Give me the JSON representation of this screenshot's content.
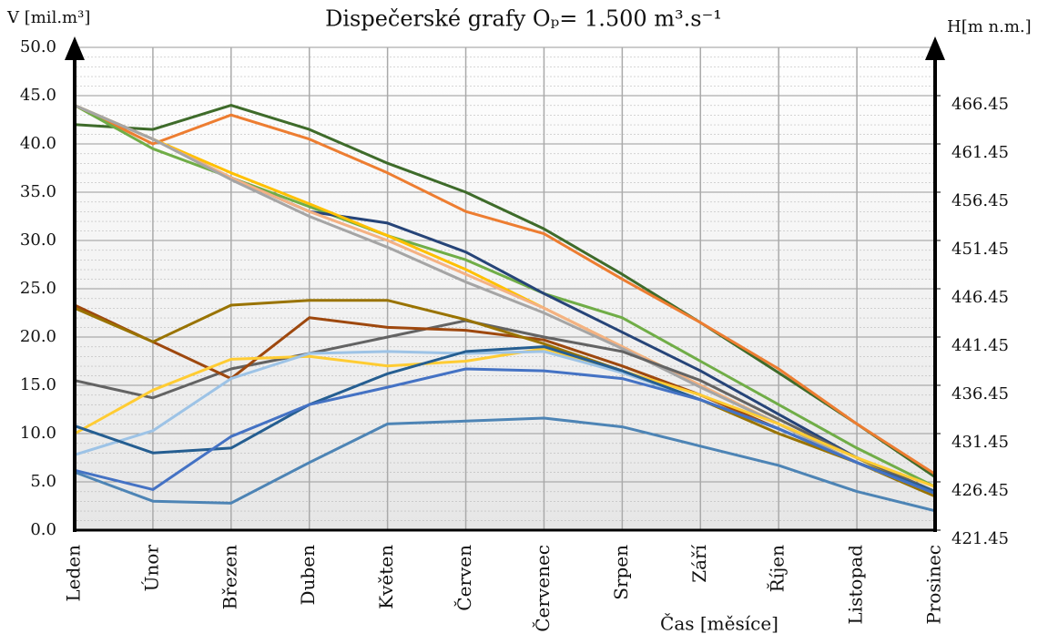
{
  "chart_data": {
    "type": "line",
    "title": "Dispečerské grafy Oₚ= 1.500 m³.s⁻¹",
    "y_label": "V [mil.m³]",
    "y2_label": "H[m n.m.]",
    "x_label": "Čas [měsíce]",
    "categories": [
      "Leden",
      "Únor",
      "Březen",
      "Duben",
      "Květen",
      "Červen",
      "Červenec",
      "Srpen",
      "Září",
      "Říjen",
      "Listopad",
      "Prosinec"
    ],
    "ylim": [
      0,
      50
    ],
    "yticks": [
      {
        "value": 0,
        "label": "0.0"
      },
      {
        "value": 5,
        "label": "5.0"
      },
      {
        "value": 10,
        "label": "10.0"
      },
      {
        "value": 15,
        "label": "15.0"
      },
      {
        "value": 20,
        "label": "20.0"
      },
      {
        "value": 25,
        "label": "25.0"
      },
      {
        "value": 30,
        "label": "30.0"
      },
      {
        "value": 35,
        "label": "35.0"
      },
      {
        "value": 40,
        "label": "40.0"
      },
      {
        "value": 45,
        "label": "45.0"
      },
      {
        "value": 50,
        "label": "50.0"
      }
    ],
    "y2lim": [
      421.45,
      471.45
    ],
    "y2ticks": [
      421.45,
      426.45,
      431.45,
      436.45,
      441.45,
      446.45,
      451.45,
      456.45,
      461.45,
      466.45
    ],
    "grid": true,
    "series": [
      {
        "color": "#3e6b2a",
        "values": [
          42.0,
          41.5,
          44.0,
          41.5,
          38.0,
          35.0,
          31.2,
          26.5,
          21.5,
          16.3,
          11.0,
          5.5
        ]
      },
      {
        "color": "#ed7d31",
        "values": [
          44.0,
          40.0,
          43.0,
          40.5,
          37.0,
          33.0,
          30.7,
          26.0,
          21.5,
          16.7,
          11.0,
          5.8
        ]
      },
      {
        "color": "#70ad47",
        "values": [
          44.0,
          39.5,
          36.5,
          33.5,
          30.5,
          28.0,
          24.5,
          22.0,
          17.5,
          13.0,
          8.5,
          4.5
        ]
      },
      {
        "color": "#264478",
        "values": [
          44.0,
          40.5,
          36.5,
          33.0,
          31.8,
          28.8,
          24.5,
          20.5,
          16.5,
          12.0,
          7.5,
          4.0
        ]
      },
      {
        "color": "#ffc000",
        "values": [
          44.0,
          40.5,
          37.0,
          33.8,
          30.5,
          27.0,
          23.0,
          19.0,
          15.0,
          11.0,
          7.5,
          3.5
        ]
      },
      {
        "color": "#f4b183",
        "values": [
          44.0,
          40.5,
          36.5,
          33.0,
          30.0,
          26.5,
          23.0,
          19.0,
          15.0,
          11.0,
          7.0,
          3.8
        ]
      },
      {
        "color": "#a5a5a5",
        "values": [
          44.0,
          40.5,
          36.3,
          32.5,
          29.3,
          25.7,
          22.5,
          18.8,
          14.8,
          11.0,
          7.0,
          3.5
        ]
      },
      {
        "color": "#636363",
        "values": [
          15.5,
          13.7,
          16.7,
          18.3,
          20.0,
          21.7,
          20.0,
          18.5,
          15.5,
          11.5,
          7.5,
          4.0
        ]
      },
      {
        "color": "#9e480e",
        "values": [
          23.3,
          19.5,
          15.7,
          22.0,
          21.0,
          20.7,
          19.7,
          17.0,
          14.0,
          10.5,
          7.0,
          4.0
        ]
      },
      {
        "color": "#997300",
        "values": [
          23.0,
          19.5,
          23.3,
          23.8,
          23.8,
          21.8,
          19.3,
          16.5,
          13.5,
          10.0,
          7.0,
          3.5
        ]
      },
      {
        "color": "#ffcc33",
        "values": [
          10.0,
          14.5,
          17.7,
          18.0,
          17.0,
          17.5,
          18.8,
          16.5,
          14.0,
          11.0,
          7.5,
          4.5
        ]
      },
      {
        "color": "#9dc3e6",
        "values": [
          7.8,
          10.3,
          15.7,
          18.3,
          18.5,
          18.3,
          18.5,
          16.3,
          13.5,
          10.5,
          7.0,
          3.8
        ]
      },
      {
        "color": "#255e91",
        "values": [
          10.8,
          8.0,
          8.5,
          13.0,
          16.2,
          18.5,
          19.0,
          16.5,
          13.5,
          10.5,
          7.0,
          4.0
        ]
      },
      {
        "color": "#4472c4",
        "values": [
          6.2,
          4.2,
          9.7,
          13.0,
          14.8,
          16.7,
          16.5,
          15.7,
          13.5,
          10.5,
          7.0,
          3.8
        ]
      },
      {
        "color": "#4d84b5",
        "values": [
          6.0,
          3.0,
          2.8,
          7.0,
          11.0,
          11.3,
          11.6,
          10.7,
          8.7,
          6.7,
          4.0,
          2.0
        ]
      }
    ]
  }
}
